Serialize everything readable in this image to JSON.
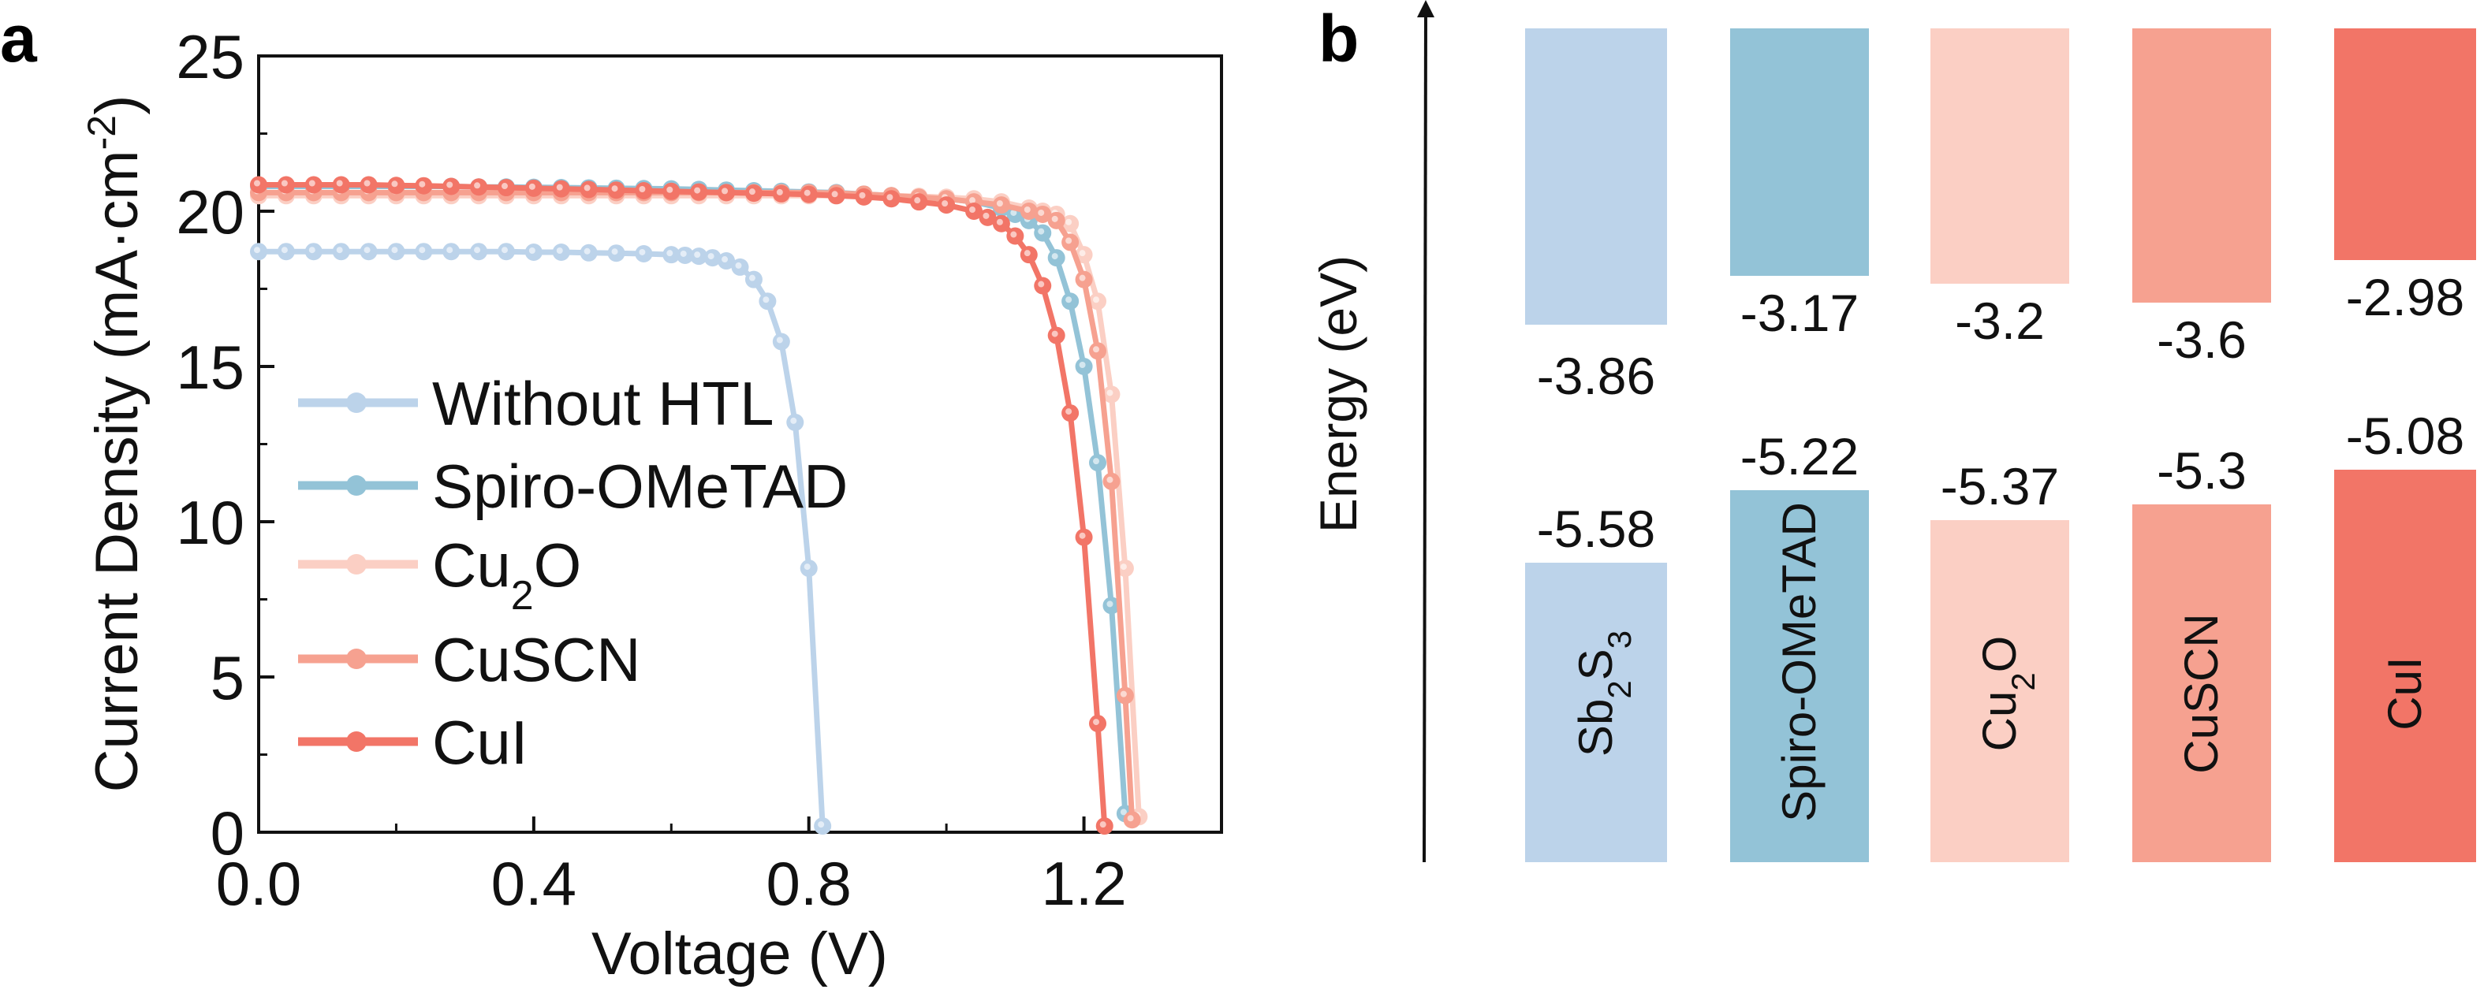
{
  "chart_data": [
    {
      "panel": "a",
      "type": "line",
      "xlabel": "Voltage (V)",
      "ylabel": "Current Density (mA·cm⁻²)",
      "ylabel_parts": [
        {
          "t": "Current Density (mA·cm"
        },
        {
          "t": "-2",
          "sup": true
        },
        {
          "t": ")"
        }
      ],
      "xlim": [
        0,
        1.4
      ],
      "ylim": [
        0,
        25
      ],
      "xticks": [
        "0.0",
        "0.4",
        "0.8",
        "1.2"
      ],
      "xtick_values": [
        0,
        0.4,
        0.8,
        1.2
      ],
      "yticks": [
        "0",
        "5",
        "10",
        "15",
        "20",
        "25"
      ],
      "ytick_values": [
        0,
        5,
        10,
        15,
        20,
        25
      ],
      "grid": false,
      "legend_position": "center-left",
      "series": [
        {
          "name": "Without HTL",
          "name_parts": [
            {
              "t": "Without HTL"
            }
          ],
          "color": "#bcd3ea",
          "points": [
            [
              0,
              18.7
            ],
            [
              0.04,
              18.7
            ],
            [
              0.08,
              18.7
            ],
            [
              0.12,
              18.7
            ],
            [
              0.16,
              18.7
            ],
            [
              0.2,
              18.7
            ],
            [
              0.24,
              18.7
            ],
            [
              0.28,
              18.7
            ],
            [
              0.32,
              18.7
            ],
            [
              0.36,
              18.7
            ],
            [
              0.4,
              18.68
            ],
            [
              0.44,
              18.68
            ],
            [
              0.48,
              18.66
            ],
            [
              0.52,
              18.65
            ],
            [
              0.56,
              18.63
            ],
            [
              0.6,
              18.6
            ],
            [
              0.62,
              18.58
            ],
            [
              0.64,
              18.55
            ],
            [
              0.66,
              18.5
            ],
            [
              0.68,
              18.4
            ],
            [
              0.7,
              18.2
            ],
            [
              0.72,
              17.8
            ],
            [
              0.74,
              17.1
            ],
            [
              0.76,
              15.8
            ],
            [
              0.78,
              13.2
            ],
            [
              0.8,
              8.5
            ],
            [
              0.82,
              0.2
            ]
          ]
        },
        {
          "name": "Spiro-OMeTAD",
          "name_parts": [
            {
              "t": "Spiro-OMeTAD"
            }
          ],
          "color": "#93c3d7",
          "points": [
            [
              0,
              20.8
            ],
            [
              0.04,
              20.8
            ],
            [
              0.08,
              20.8
            ],
            [
              0.12,
              20.8
            ],
            [
              0.16,
              20.8
            ],
            [
              0.2,
              20.8
            ],
            [
              0.24,
              20.8
            ],
            [
              0.28,
              20.8
            ],
            [
              0.32,
              20.78
            ],
            [
              0.36,
              20.78
            ],
            [
              0.4,
              20.77
            ],
            [
              0.44,
              20.76
            ],
            [
              0.48,
              20.75
            ],
            [
              0.52,
              20.74
            ],
            [
              0.56,
              20.73
            ],
            [
              0.6,
              20.72
            ],
            [
              0.64,
              20.7
            ],
            [
              0.68,
              20.68
            ],
            [
              0.72,
              20.66
            ],
            [
              0.76,
              20.64
            ],
            [
              0.8,
              20.62
            ],
            [
              0.84,
              20.6
            ],
            [
              0.88,
              20.55
            ],
            [
              0.92,
              20.5
            ],
            [
              0.96,
              20.45
            ],
            [
              1.0,
              20.4
            ],
            [
              1.04,
              20.3
            ],
            [
              1.08,
              20.1
            ],
            [
              1.1,
              19.9
            ],
            [
              1.12,
              19.7
            ],
            [
              1.14,
              19.3
            ],
            [
              1.16,
              18.5
            ],
            [
              1.18,
              17.1
            ],
            [
              1.2,
              15.0
            ],
            [
              1.22,
              11.9
            ],
            [
              1.24,
              7.3
            ],
            [
              1.26,
              0.6
            ]
          ]
        },
        {
          "name": "Cu2O",
          "name_parts": [
            {
              "t": "Cu"
            },
            {
              "t": "2",
              "sub": true
            },
            {
              "t": "O"
            }
          ],
          "color": "#fbcfc4",
          "points": [
            [
              0,
              20.5
            ],
            [
              0.04,
              20.5
            ],
            [
              0.08,
              20.5
            ],
            [
              0.12,
              20.5
            ],
            [
              0.16,
              20.5
            ],
            [
              0.2,
              20.5
            ],
            [
              0.24,
              20.5
            ],
            [
              0.28,
              20.5
            ],
            [
              0.32,
              20.5
            ],
            [
              0.36,
              20.5
            ],
            [
              0.4,
              20.5
            ],
            [
              0.44,
              20.5
            ],
            [
              0.48,
              20.5
            ],
            [
              0.52,
              20.5
            ],
            [
              0.56,
              20.5
            ],
            [
              0.6,
              20.5
            ],
            [
              0.64,
              20.5
            ],
            [
              0.68,
              20.5
            ],
            [
              0.72,
              20.5
            ],
            [
              0.76,
              20.5
            ],
            [
              0.8,
              20.5
            ],
            [
              0.84,
              20.5
            ],
            [
              0.88,
              20.5
            ],
            [
              0.92,
              20.5
            ],
            [
              0.96,
              20.48
            ],
            [
              1.0,
              20.45
            ],
            [
              1.04,
              20.4
            ],
            [
              1.08,
              20.3
            ],
            [
              1.12,
              20.1
            ],
            [
              1.14,
              20.0
            ],
            [
              1.16,
              19.9
            ],
            [
              1.18,
              19.6
            ],
            [
              1.2,
              18.6
            ],
            [
              1.22,
              17.1
            ],
            [
              1.24,
              14.1
            ],
            [
              1.26,
              8.5
            ],
            [
              1.28,
              0.5
            ]
          ]
        },
        {
          "name": "CuSCN",
          "name_parts": [
            {
              "t": "CuSCN"
            }
          ],
          "color": "#f6a190",
          "points": [
            [
              0,
              20.6
            ],
            [
              0.04,
              20.6
            ],
            [
              0.08,
              20.6
            ],
            [
              0.12,
              20.6
            ],
            [
              0.16,
              20.6
            ],
            [
              0.2,
              20.6
            ],
            [
              0.24,
              20.6
            ],
            [
              0.28,
              20.6
            ],
            [
              0.32,
              20.6
            ],
            [
              0.36,
              20.6
            ],
            [
              0.4,
              20.6
            ],
            [
              0.44,
              20.6
            ],
            [
              0.48,
              20.6
            ],
            [
              0.52,
              20.6
            ],
            [
              0.56,
              20.6
            ],
            [
              0.6,
              20.6
            ],
            [
              0.64,
              20.6
            ],
            [
              0.68,
              20.6
            ],
            [
              0.72,
              20.6
            ],
            [
              0.76,
              20.6
            ],
            [
              0.8,
              20.6
            ],
            [
              0.84,
              20.58
            ],
            [
              0.88,
              20.55
            ],
            [
              0.92,
              20.5
            ],
            [
              0.96,
              20.45
            ],
            [
              1.0,
              20.4
            ],
            [
              1.04,
              20.3
            ],
            [
              1.08,
              20.2
            ],
            [
              1.12,
              20.0
            ],
            [
              1.14,
              19.9
            ],
            [
              1.16,
              19.7
            ],
            [
              1.18,
              19.0
            ],
            [
              1.2,
              17.8
            ],
            [
              1.22,
              15.5
            ],
            [
              1.24,
              11.3
            ],
            [
              1.26,
              4.4
            ],
            [
              1.27,
              0.4
            ]
          ]
        },
        {
          "name": "CuI",
          "name_parts": [
            {
              "t": "CuI"
            }
          ],
          "color": "#f27567",
          "points": [
            [
              0,
              20.85
            ],
            [
              0.04,
              20.85
            ],
            [
              0.08,
              20.85
            ],
            [
              0.12,
              20.85
            ],
            [
              0.16,
              20.85
            ],
            [
              0.2,
              20.83
            ],
            [
              0.24,
              20.82
            ],
            [
              0.28,
              20.8
            ],
            [
              0.32,
              20.78
            ],
            [
              0.36,
              20.76
            ],
            [
              0.4,
              20.74
            ],
            [
              0.44,
              20.72
            ],
            [
              0.48,
              20.7
            ],
            [
              0.52,
              20.68
            ],
            [
              0.56,
              20.66
            ],
            [
              0.6,
              20.64
            ],
            [
              0.64,
              20.62
            ],
            [
              0.68,
              20.6
            ],
            [
              0.72,
              20.58
            ],
            [
              0.76,
              20.56
            ],
            [
              0.8,
              20.54
            ],
            [
              0.84,
              20.5
            ],
            [
              0.88,
              20.46
            ],
            [
              0.92,
              20.4
            ],
            [
              0.96,
              20.3
            ],
            [
              1.0,
              20.2
            ],
            [
              1.04,
              20.0
            ],
            [
              1.06,
              19.8
            ],
            [
              1.08,
              19.6
            ],
            [
              1.1,
              19.2
            ],
            [
              1.12,
              18.6
            ],
            [
              1.14,
              17.6
            ],
            [
              1.16,
              16.0
            ],
            [
              1.18,
              13.5
            ],
            [
              1.2,
              9.5
            ],
            [
              1.22,
              3.5
            ],
            [
              1.23,
              0.2
            ]
          ]
        }
      ]
    },
    {
      "panel": "b",
      "type": "bar",
      "ylabel": "Energy (eV)",
      "materials": [
        {
          "name": "Sb2S3",
          "name_parts": [
            {
              "t": "Sb"
            },
            {
              "t": "2",
              "sub": true
            },
            {
              "t": "S"
            },
            {
              "t": "3",
              "sub": true
            }
          ],
          "cb": "-3.86",
          "vb": "-5.58",
          "color": "#bcd3ea"
        },
        {
          "name": "Spiro-OMeTAD",
          "name_parts": [
            {
              "t": "Spiro-OMeTAD"
            }
          ],
          "cb": "-3.17",
          "vb": "-5.22",
          "color": "#93c3d7"
        },
        {
          "name": "Cu2O",
          "name_parts": [
            {
              "t": "Cu"
            },
            {
              "t": "2",
              "sub": true
            },
            {
              "t": "O"
            }
          ],
          "cb": "-3.2",
          "vb": "-5.37",
          "color": "#fbcfc4"
        },
        {
          "name": "CuSCN",
          "name_parts": [
            {
              "t": "CuSCN"
            }
          ],
          "cb": "-3.6",
          "vb": "-5.3",
          "color": "#f6a190"
        },
        {
          "name": "CuI",
          "name_parts": [
            {
              "t": "CuI"
            }
          ],
          "cb": "-2.98",
          "vb": "-5.08",
          "color": "#f27567"
        }
      ]
    }
  ],
  "panel_labels": {
    "a": "a",
    "b": "b"
  }
}
